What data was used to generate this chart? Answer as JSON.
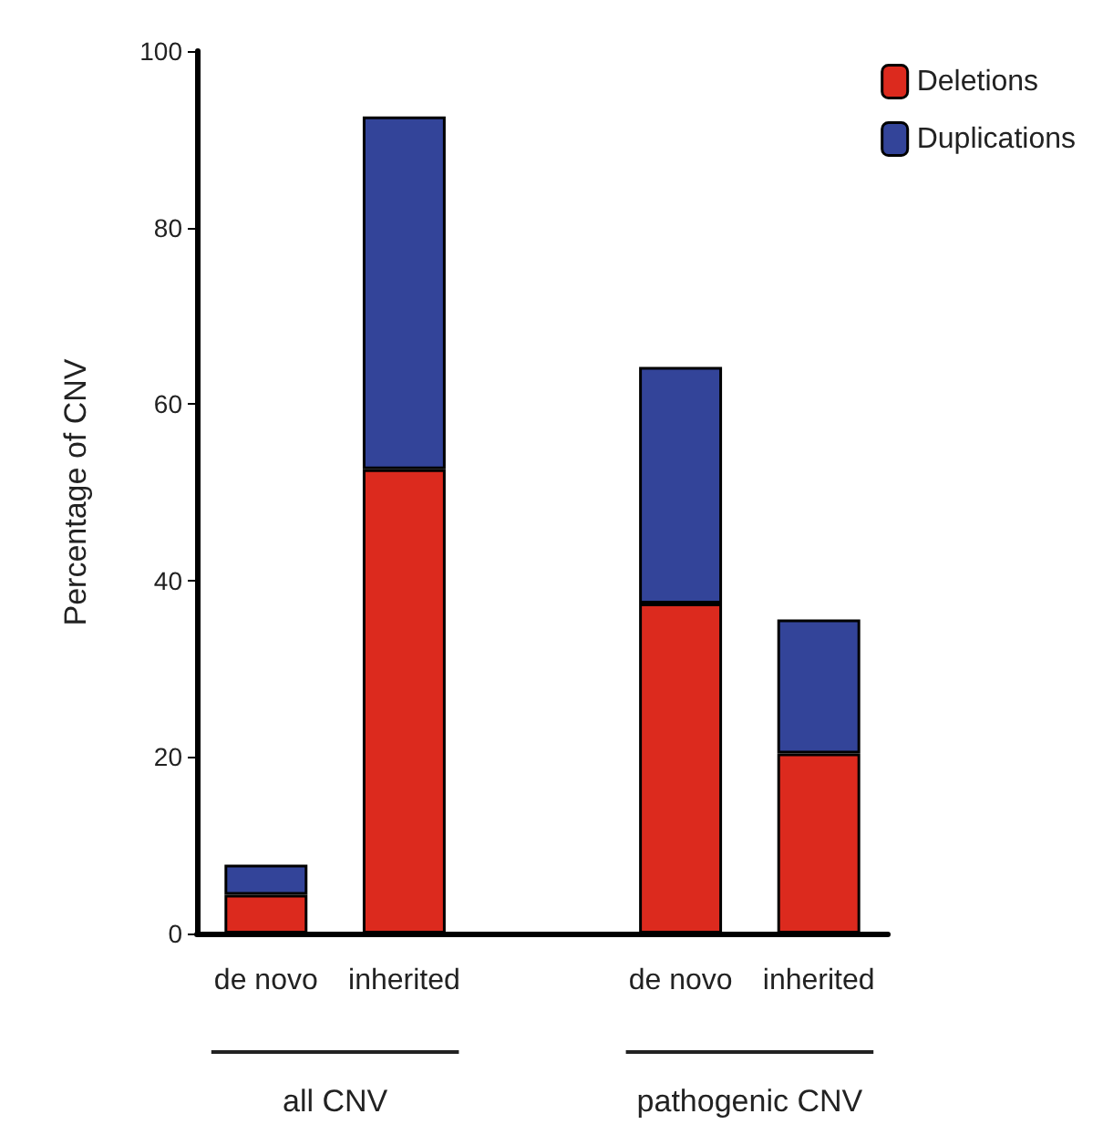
{
  "chart_data": {
    "type": "bar",
    "stacked": true,
    "ylabel": "Percentage of CNV",
    "categories": [
      "de novo",
      "inherited",
      null,
      "de novo",
      "inherited"
    ],
    "series": [
      {
        "name": "Deletions",
        "color": "#dc2a1e",
        "values": [
          4.4,
          52.6,
          null,
          37.4,
          20.4
        ]
      },
      {
        "name": "Duplications",
        "color": "#334499",
        "values": [
          3.4,
          40.0,
          null,
          26.8,
          15.2
        ]
      }
    ],
    "ylim": [
      0,
      100
    ],
    "yticks": [
      0,
      20,
      40,
      60,
      80,
      100
    ],
    "grid": false,
    "legend": "top right",
    "annotations": [
      "all CNV",
      "pathogenic CNV"
    ]
  }
}
